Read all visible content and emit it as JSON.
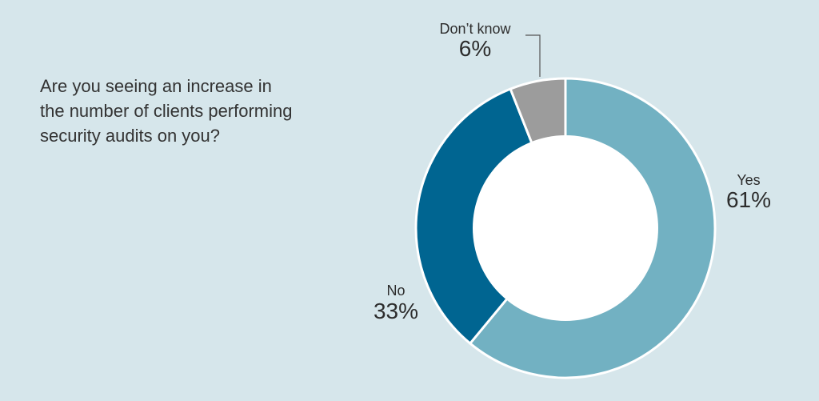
{
  "question": {
    "lines": [
      "Are you seeing an increase in",
      "the number of clients performing",
      "security audits on you?"
    ]
  },
  "colors": {
    "background": "#d6e6eb",
    "hole": "#ffffff"
  },
  "chart_data": {
    "type": "pie",
    "donut": true,
    "unit": "%",
    "slices": [
      {
        "label": "Yes",
        "value": 61,
        "display": "61%",
        "color": "#72b1c2"
      },
      {
        "label": "No",
        "value": 33,
        "display": "33%",
        "color": "#006591"
      },
      {
        "label": "Don’t know",
        "value": 6,
        "display": "6%",
        "color": "#9c9c9c"
      }
    ]
  }
}
